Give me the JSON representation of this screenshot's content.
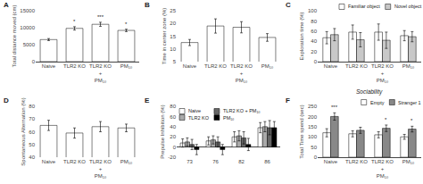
{
  "chart_data": [
    {
      "type": "bar",
      "annotations": [
        {
          "text": "A"
        },
        {
          "text": "*",
          "x": 1
        },
        {
          "text": "***",
          "x": 2
        },
        {
          "text": "*",
          "x": 3
        }
      ],
      "ylabel": "Total distance moved (cm)",
      "categories": [
        "Naive",
        "TLR2 KO",
        "TLR2 KO\n+\nPM₁₀",
        "PM₁₀"
      ],
      "values": [
        6500,
        9800,
        11000,
        9200
      ],
      "errors": [
        300,
        500,
        600,
        350
      ],
      "color": "white",
      "ylim": [
        0,
        15000
      ],
      "yticks": [
        0,
        5000,
        10000,
        15000
      ],
      "grid": false
    },
    {
      "type": "bar",
      "annotations": [
        {
          "text": "B"
        }
      ],
      "ylabel": "Time in center zone (%)",
      "categories": [
        "Naive",
        "TLR2 KO",
        "TLR2 KO\n+\nPM₁₀",
        "PM₁₀"
      ],
      "values": [
        12.5,
        19.0,
        18.5,
        14.5
      ],
      "errors": [
        1.2,
        2.8,
        2.2,
        1.5
      ],
      "color": "white",
      "ylim": [
        5,
        25
      ],
      "yticks": [
        5,
        10,
        15,
        20,
        25
      ],
      "grid": false
    },
    {
      "type": "bar",
      "annotations": [
        {
          "text": "C"
        }
      ],
      "ylabel": "Exploration time (%)",
      "categories": [
        "Naive",
        "TLR2 KO",
        "TLR2 KO\n+\nPM₁₀",
        "PM₁₀"
      ],
      "series": [
        {
          "name": "Familiar object",
          "color": "white",
          "values": [
            47,
            58,
            58,
            51
          ],
          "errors": [
            12,
            14,
            16,
            10
          ]
        },
        {
          "name": "Novel object",
          "color": "#c8c8c8",
          "values": [
            53,
            43,
            42,
            49
          ],
          "errors": [
            12,
            14,
            16,
            10
          ]
        }
      ],
      "ylim": [
        0,
        100
      ],
      "yticks": [
        0,
        20,
        40,
        60,
        80,
        100
      ],
      "legend": "upper right",
      "grid": false
    },
    {
      "type": "bar",
      "annotations": [
        {
          "text": "D"
        }
      ],
      "ylabel": "Spontaneous Alternation (%)",
      "categories": [
        "Naive",
        "TLR2 KO",
        "TLR2 KO\n+\nPM₁₀",
        "PM₁₀"
      ],
      "values": [
        65,
        59,
        64,
        63
      ],
      "errors": [
        4,
        4,
        4,
        3
      ],
      "color": "white",
      "ylim": [
        40,
        80
      ],
      "yticks": [
        40,
        50,
        60,
        70,
        80
      ],
      "grid": false
    },
    {
      "type": "bar",
      "annotations": [
        {
          "text": "E"
        }
      ],
      "ylabel": "Prepulse Inhibition (%)",
      "categories": [
        "73",
        "76",
        "82",
        "86"
      ],
      "series": [
        {
          "name": "Naive",
          "color": "white",
          "values": [
            8,
            12,
            20,
            38
          ],
          "errors": [
            8,
            8,
            10,
            10
          ]
        },
        {
          "name": "TLR2 KO",
          "color": "#aaaaaa",
          "values": [
            10,
            14,
            22,
            40
          ],
          "errors": [
            8,
            8,
            10,
            10
          ]
        },
        {
          "name": "TLR2 KO + PM₁₀",
          "color": "#666666",
          "values": [
            5,
            10,
            18,
            38
          ],
          "errors": [
            10,
            10,
            12,
            14
          ]
        },
        {
          "name": "PM₁₀",
          "color": "black",
          "values": [
            -5,
            -5,
            5,
            38
          ],
          "errors": [
            10,
            10,
            12,
            12
          ]
        }
      ],
      "ylim": [
        -20,
        80
      ],
      "yticks": [
        -20,
        0,
        20,
        40,
        60,
        80
      ],
      "legend": "upper left",
      "grid": false
    },
    {
      "type": "bar",
      "title": "Sociability",
      "annotations": [
        {
          "text": "F"
        },
        {
          "text": "***",
          "x": 0,
          "series": "Stranger 1"
        },
        {
          "text": "*",
          "x": 2,
          "series": "Stranger 1"
        },
        {
          "text": "*",
          "x": 3,
          "series": "Stranger 1"
        }
      ],
      "ylabel": "Total Time spend (sec)",
      "categories": [
        "Naive",
        "TLR2 KO",
        "TLR2 KO\n+\nPM₁₀",
        "PM₁₀"
      ],
      "series": [
        {
          "name": "Empty",
          "color": "white",
          "values": [
            120,
            115,
            110,
            100
          ],
          "errors": [
            20,
            15,
            15,
            12
          ]
        },
        {
          "name": "Stranger 1",
          "color": "#888888",
          "values": [
            200,
            132,
            142,
            138
          ],
          "errors": [
            18,
            15,
            16,
            14
          ]
        }
      ],
      "ylim": [
        0,
        250
      ],
      "yticks": [
        0,
        50,
        100,
        150,
        200,
        250
      ],
      "legend": "upper right",
      "grid": false
    }
  ]
}
